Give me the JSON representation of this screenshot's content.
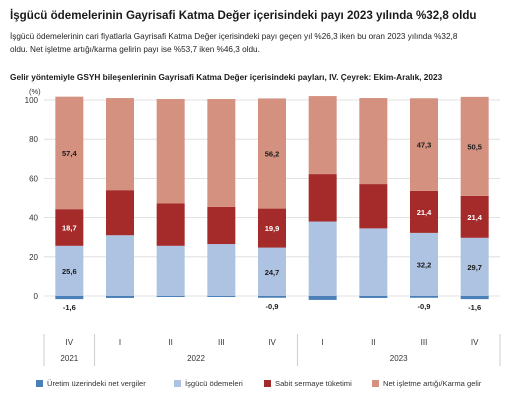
{
  "header": {
    "title": "İşgücü ödemelerinin Gayrisafi Katma Değer içerisindeki payı 2023 yılında %32,8 oldu",
    "summary_line1": "İşgücü ödemelerinin cari fiyatlarla Gayrisafi Katma Değer içerisindeki payı geçen yıl %26,3 iken bu oran 2023 yılında %32,8",
    "summary_line2": "oldu. Net işletme artığı/karma gelirin payı ise %53,7 iken %46,3 oldu."
  },
  "chart_data": {
    "type": "bar",
    "stacked": true,
    "title": "Gelir yöntemiyle GSYH bileşenlerinin Gayrisafi Katma Değer içerisindeki payları, IV. Çeyrek: Ekim-Aralık, 2023",
    "unit_label": "(%)",
    "ylim": [
      -10,
      100
    ],
    "yticks": [
      0,
      20,
      40,
      60,
      80,
      100
    ],
    "categories": [
      "IV",
      "I",
      "II",
      "III",
      "IV",
      "I",
      "II",
      "III",
      "IV"
    ],
    "years": [
      {
        "label": "2021",
        "start": 0,
        "end": 0
      },
      {
        "label": "2022",
        "start": 1,
        "end": 4
      },
      {
        "label": "2023",
        "start": 5,
        "end": 8
      }
    ],
    "series": [
      {
        "name": "Üretim üzerindeki net vergiler",
        "color": "#4a7fb8",
        "values": [
          -1.6,
          -1.0,
          -0.5,
          -0.5,
          -0.9,
          -2.0,
          -1.0,
          -0.9,
          -1.6
        ]
      },
      {
        "name": "İşgücü ödemeleri",
        "color": "#aec3e2",
        "values": [
          25.6,
          31.0,
          25.6,
          26.5,
          24.7,
          38.0,
          34.5,
          32.2,
          29.7
        ]
      },
      {
        "name": "Sabit sermaye tüketimi",
        "color": "#a52a2a",
        "values": [
          18.7,
          23.0,
          21.6,
          19.0,
          19.9,
          24.2,
          22.6,
          21.4,
          21.4
        ]
      },
      {
        "name": "Net işletme artığı/Karma gelir",
        "color": "#d4917f",
        "values": [
          57.4,
          47.0,
          53.3,
          55.0,
          56.2,
          39.8,
          43.9,
          47.3,
          50.5
        ]
      }
    ],
    "data_labels": [
      {
        "bar": 0,
        "series": 0,
        "text": "-1,6"
      },
      {
        "bar": 0,
        "series": 1,
        "text": "25,6"
      },
      {
        "bar": 0,
        "series": 2,
        "text": "18,7"
      },
      {
        "bar": 0,
        "series": 3,
        "text": "57,4"
      },
      {
        "bar": 4,
        "series": 0,
        "text": "-0,9"
      },
      {
        "bar": 4,
        "series": 1,
        "text": "24,7"
      },
      {
        "bar": 4,
        "series": 2,
        "text": "19,9"
      },
      {
        "bar": 4,
        "series": 3,
        "text": "56,2"
      },
      {
        "bar": 7,
        "series": 0,
        "text": "-0,9"
      },
      {
        "bar": 7,
        "series": 1,
        "text": "32,2"
      },
      {
        "bar": 7,
        "series": 2,
        "text": "21,4"
      },
      {
        "bar": 7,
        "series": 3,
        "text": "47,3"
      },
      {
        "bar": 8,
        "series": 0,
        "text": "-1,6"
      },
      {
        "bar": 8,
        "series": 1,
        "text": "29,7"
      },
      {
        "bar": 8,
        "series": 2,
        "text": "21,4"
      },
      {
        "bar": 8,
        "series": 3,
        "text": "50,5"
      }
    ],
    "grid": true,
    "legend_position": "bottom"
  }
}
